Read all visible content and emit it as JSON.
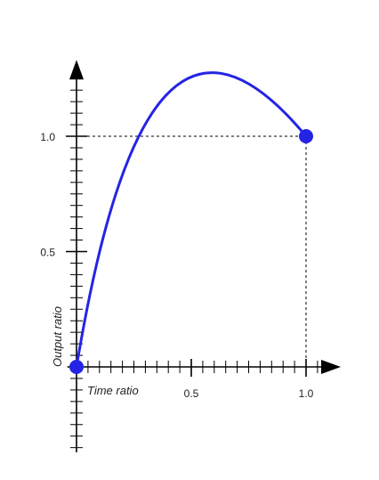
{
  "chart_data": {
    "type": "line",
    "xlabel": "Time ratio",
    "ylabel": "Output ratio",
    "xlim": [
      -0.04,
      1.12
    ],
    "ylim": [
      -0.37,
      1.3
    ],
    "x_ticks": [
      0.5,
      1.0
    ],
    "x_tick_labels": [
      "0.5",
      "1.0"
    ],
    "y_ticks": [
      0.5,
      1.0
    ],
    "y_tick_labels": [
      "0.5",
      "1.0"
    ],
    "minor_tick_step": 0.05,
    "grid": false,
    "series": [
      {
        "color": "#2424e6",
        "control_points": [
          [
            0,
            0
          ],
          [
            0.2,
            1.2
          ],
          [
            0.5,
            1.6
          ],
          [
            1.0,
            1.0
          ]
        ],
        "endpoints": [
          [
            0,
            0
          ],
          [
            1,
            1
          ]
        ]
      }
    ],
    "reference_lines": [
      {
        "type": "horizontal",
        "y": 1.0,
        "x_from": 0,
        "x_to": 1.0,
        "style": "dashed"
      },
      {
        "type": "vertical",
        "x": 1.0,
        "y_from": 0,
        "y_to": 1.0,
        "style": "dashed"
      }
    ],
    "colors": {
      "axis": "#000000",
      "curve": "#2424e6",
      "guide": "#000000"
    }
  }
}
